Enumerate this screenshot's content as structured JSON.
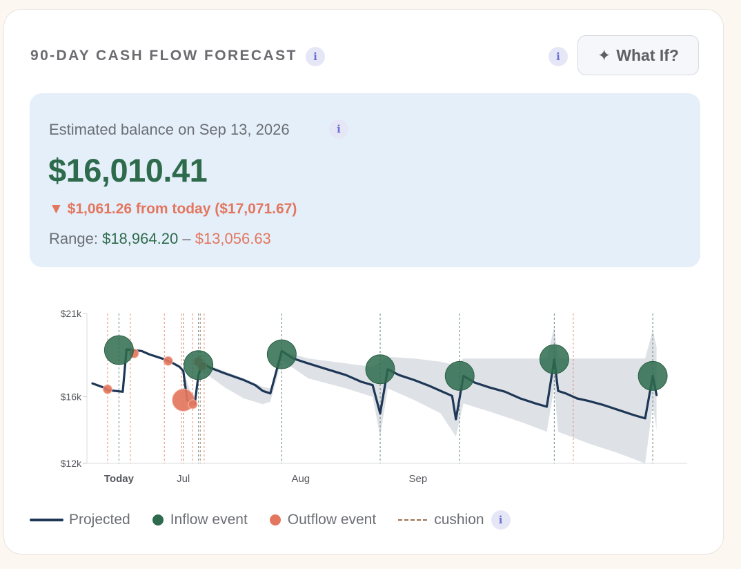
{
  "header": {
    "title": "90-DAY CASH FLOW FORECAST",
    "whatif_label": "What If?",
    "whatif_icon": "sparkle-icon"
  },
  "summary": {
    "estimate_label": "Estimated balance on Sep 13, 2026",
    "balance": "$16,010.41",
    "delta_arrow": "▼",
    "delta_text": "$1,061.26 from today ($17,071.67)",
    "range_label": "Range:",
    "range_high": "$18,964.20",
    "range_sep": "–",
    "range_low": "$13,056.63"
  },
  "colors": {
    "projected": "#1e3756",
    "inflow": "#2e6b4d",
    "outflow": "#e3765e",
    "band": "#c8ced6",
    "cushion": "#9b6f4e"
  },
  "chart_data": {
    "type": "line",
    "ylim": [
      12000,
      21000
    ],
    "yticks": [
      {
        "value": 12000,
        "label": "$12k"
      },
      {
        "value": 16000,
        "label": "$16k"
      },
      {
        "value": 21000,
        "label": "$21k"
      }
    ],
    "xlim": [
      -7,
      89
    ],
    "xticks": [
      {
        "day": 0,
        "label": "Today"
      },
      {
        "day": 17,
        "label": "Jul"
      },
      {
        "day": 48,
        "label": "Aug"
      },
      {
        "day": 79,
        "label": "Sep"
      }
    ],
    "projected": {
      "name": "Projected",
      "points": [
        [
          -7,
          16800
        ],
        [
          -4,
          16550
        ],
        [
          -3,
          16400
        ],
        [
          1,
          16300
        ],
        [
          2,
          18850
        ],
        [
          6,
          18750
        ],
        [
          8,
          18550
        ],
        [
          10,
          18400
        ],
        [
          12,
          18250
        ],
        [
          14,
          18050
        ],
        [
          16,
          17800
        ],
        [
          17,
          17550
        ],
        [
          18,
          15800
        ],
        [
          20,
          15550
        ],
        [
          21,
          17300
        ],
        [
          22,
          18050
        ],
        [
          24,
          17750
        ],
        [
          28,
          17400
        ],
        [
          33,
          17000
        ],
        [
          36,
          16700
        ],
        [
          38,
          16350
        ],
        [
          40,
          16200
        ],
        [
          43,
          18750
        ],
        [
          46,
          18300
        ],
        [
          50,
          18000
        ],
        [
          55,
          17650
        ],
        [
          60,
          17300
        ],
        [
          64,
          16900
        ],
        [
          67,
          16700
        ],
        [
          69,
          15000
        ],
        [
          71,
          17650
        ],
        [
          74,
          17300
        ],
        [
          78,
          17000
        ],
        [
          82,
          16650
        ],
        [
          85,
          16350
        ],
        [
          88,
          16050
        ],
        [
          89,
          14650
        ],
        [
          91,
          17250
        ],
        [
          94,
          16850
        ],
        [
          98,
          16550
        ],
        [
          102,
          16300
        ],
        [
          106,
          15900
        ],
        [
          110,
          15600
        ],
        [
          113,
          15400
        ],
        [
          115,
          18250
        ],
        [
          116,
          16350
        ],
        [
          118,
          16200
        ],
        [
          121,
          15900
        ],
        [
          124,
          15750
        ],
        [
          128,
          15500
        ],
        [
          132,
          15200
        ],
        [
          136,
          14900
        ],
        [
          139,
          14700
        ],
        [
          141,
          17250
        ],
        [
          142,
          16100
        ]
      ]
    },
    "band": {
      "upper": [
        [
          -7,
          16800
        ],
        [
          1,
          16300
        ],
        [
          2,
          18850
        ],
        [
          10,
          18400
        ],
        [
          17,
          17550
        ],
        [
          20,
          15550
        ],
        [
          22,
          18050
        ],
        [
          33,
          17100
        ],
        [
          38,
          16600
        ],
        [
          40,
          16500
        ],
        [
          43,
          18750
        ],
        [
          50,
          18300
        ],
        [
          60,
          18000
        ],
        [
          67,
          17800
        ],
        [
          71,
          18400
        ],
        [
          78,
          18300
        ],
        [
          85,
          18100
        ],
        [
          89,
          17900
        ],
        [
          91,
          18300
        ],
        [
          98,
          18300
        ],
        [
          106,
          18300
        ],
        [
          113,
          18300
        ],
        [
          115,
          20200
        ],
        [
          116,
          18300
        ],
        [
          124,
          18300
        ],
        [
          132,
          18300
        ],
        [
          139,
          18300
        ],
        [
          141,
          20000
        ],
        [
          142,
          19000
        ]
      ],
      "lower": [
        [
          142,
          14000
        ],
        [
          141,
          15500
        ],
        [
          139,
          12000
        ],
        [
          132,
          12600
        ],
        [
          124,
          13200
        ],
        [
          116,
          13900
        ],
        [
          115,
          16600
        ],
        [
          113,
          13900
        ],
        [
          106,
          14500
        ],
        [
          98,
          15100
        ],
        [
          91,
          15600
        ],
        [
          89,
          13600
        ],
        [
          85,
          15000
        ],
        [
          78,
          15800
        ],
        [
          71,
          16500
        ],
        [
          69,
          13600
        ],
        [
          67,
          16000
        ],
        [
          60,
          16500
        ],
        [
          50,
          17100
        ],
        [
          43,
          18200
        ],
        [
          40,
          15700
        ],
        [
          38,
          15550
        ],
        [
          33,
          15900
        ],
        [
          28,
          16550
        ],
        [
          22,
          17550
        ],
        [
          21,
          17100
        ],
        [
          20,
          15550
        ],
        [
          18,
          15800
        ],
        [
          17,
          17550
        ],
        [
          10,
          18400
        ],
        [
          2,
          18850
        ],
        [
          1,
          16300
        ],
        [
          -7,
          16800
        ]
      ]
    },
    "inflows": [
      {
        "day": 0,
        "value": 18800,
        "size": "large"
      },
      {
        "day": 21,
        "value": 17900,
        "size": "large"
      },
      {
        "day": 43,
        "value": 18550,
        "size": "large"
      },
      {
        "day": 69,
        "value": 17650,
        "size": "large"
      },
      {
        "day": 90,
        "value": 17250,
        "size": "large"
      },
      {
        "day": 115,
        "value": 18250,
        "size": "large"
      },
      {
        "day": 141,
        "value": 17250,
        "size": "large"
      }
    ],
    "outflows": [
      {
        "day": -3,
        "value": 16450,
        "size": "small"
      },
      {
        "day": 4,
        "value": 18600,
        "size": "small"
      },
      {
        "day": 13,
        "value": 18150,
        "size": "small"
      },
      {
        "day": 17,
        "value": 15800,
        "size": "large"
      },
      {
        "day": 19.5,
        "value": 15550,
        "size": "small"
      },
      {
        "day": 21,
        "value": 18100,
        "size": "small"
      },
      {
        "day": 22,
        "value": 17850,
        "size": "small"
      }
    ],
    "event_lines": [
      {
        "day": -3,
        "kind": "outflow"
      },
      {
        "day": 0,
        "kind": "inflow"
      },
      {
        "day": 3,
        "kind": "outflow"
      },
      {
        "day": 12,
        "kind": "outflow"
      },
      {
        "day": 16.5,
        "kind": "outflow"
      },
      {
        "day": 17,
        "kind": "cushion"
      },
      {
        "day": 19.5,
        "kind": "outflow"
      },
      {
        "day": 21,
        "kind": "inflow"
      },
      {
        "day": 21.5,
        "kind": "cushion"
      },
      {
        "day": 22.5,
        "kind": "outflow"
      },
      {
        "day": 43,
        "kind": "inflow"
      },
      {
        "day": 69,
        "kind": "inflow"
      },
      {
        "day": 90,
        "kind": "inflow"
      },
      {
        "day": 115,
        "kind": "inflow"
      },
      {
        "day": 120,
        "kind": "outflow"
      },
      {
        "day": 141,
        "kind": "inflow"
      }
    ],
    "legend": [
      {
        "key": "projected",
        "label": "Projected"
      },
      {
        "key": "inflow",
        "label": "Inflow event"
      },
      {
        "key": "outflow",
        "label": "Outflow event"
      },
      {
        "key": "cushion",
        "label": "cushion"
      }
    ]
  }
}
